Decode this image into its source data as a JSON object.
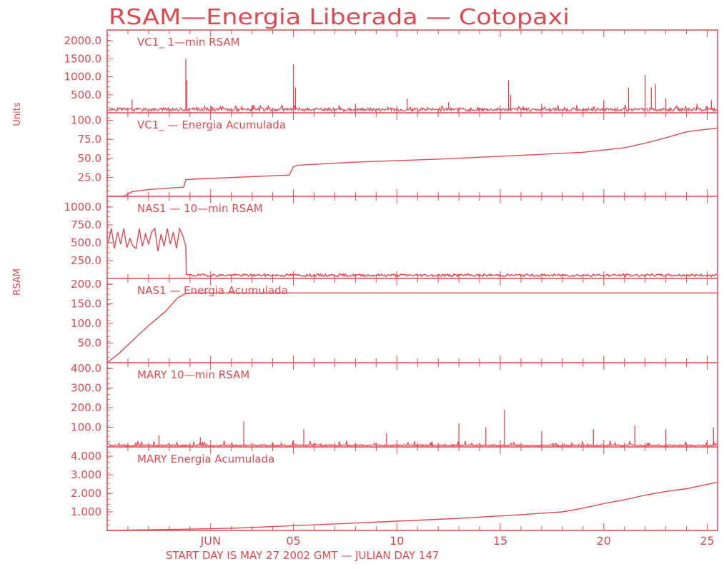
{
  "colors": {
    "line": "#e0484f",
    "background": "#ffffff"
  },
  "title": "RSAM—Energia Liberada — Cotopaxi",
  "side_labels": {
    "upper": "Units",
    "lower": "RSAM"
  },
  "x_axis": {
    "ticks": [
      {
        "label": "JUN",
        "day": 5
      },
      {
        "label": "05",
        "day": 9
      },
      {
        "label": "10",
        "day": 14
      },
      {
        "label": "15",
        "day": 19
      },
      {
        "label": "20",
        "day": 24
      },
      {
        "label": "25",
        "day": 29
      }
    ],
    "range": [
      0,
      29.5
    ],
    "footer": "START DAY IS MAY 27 2002 GMT    — JULIAN DAY 147"
  },
  "chart_data": [
    {
      "type": "line",
      "title": "VC1_  1—min RSAM",
      "ylabel": "Units",
      "ylim": [
        0,
        2300
      ],
      "yticks": [
        "2000.0",
        "1500.0",
        "1000.0",
        "500.0"
      ],
      "ytick_values": [
        2000,
        1500,
        1000,
        500
      ],
      "baseline": 90,
      "spikes": [
        [
          1.2,
          380
        ],
        [
          3.8,
          1500
        ],
        [
          3.85,
          900
        ],
        [
          9.0,
          1350
        ],
        [
          9.1,
          700
        ],
        [
          6.5,
          200
        ],
        [
          12.0,
          250
        ],
        [
          14.5,
          400
        ],
        [
          16.5,
          300
        ],
        [
          19.4,
          900
        ],
        [
          19.5,
          500
        ],
        [
          21.0,
          250
        ],
        [
          24.0,
          350
        ],
        [
          25.2,
          700
        ],
        [
          26.0,
          1050
        ],
        [
          26.3,
          700
        ],
        [
          26.5,
          800
        ],
        [
          27.0,
          400
        ],
        [
          28.5,
          250
        ],
        [
          29.2,
          350
        ]
      ]
    },
    {
      "type": "line",
      "title": "VC1_  — Energia Acumulada",
      "ylabel": "Units",
      "ylim": [
        0,
        110
      ],
      "yticks": [
        "100.0",
        "75.0",
        "50.0",
        "25.0"
      ],
      "ytick_values": [
        100,
        75,
        50,
        25
      ],
      "x": [
        0,
        0.8,
        1.2,
        2.0,
        3.7,
        3.8,
        4.5,
        8.8,
        9.0,
        9.2,
        12,
        16,
        20,
        23,
        25,
        26,
        27,
        28,
        29.5
      ],
      "y": [
        0,
        0,
        6,
        9,
        12,
        22,
        23,
        28,
        39,
        41,
        45,
        49,
        54,
        58,
        64,
        70,
        77,
        85,
        90
      ]
    },
    {
      "type": "line",
      "title": "NAS1  — 10—min RSAM",
      "ylabel": "RSAM",
      "ylim": [
        0,
        1150
      ],
      "yticks": [
        "1000.0",
        "750.0",
        "500.0",
        "250.0"
      ],
      "ytick_values": [
        1000,
        750,
        500,
        250
      ],
      "x": [
        0.05,
        0.2,
        0.35,
        0.5,
        0.65,
        0.8,
        0.95,
        1.1,
        1.25,
        1.4,
        1.55,
        1.7,
        1.85,
        2.0,
        2.15,
        2.3,
        2.45,
        2.6,
        2.75,
        2.9,
        3.05,
        3.2,
        3.35,
        3.5,
        3.65,
        3.8,
        3.82
      ],
      "y": [
        500,
        700,
        420,
        650,
        480,
        700,
        430,
        560,
        450,
        420,
        700,
        450,
        620,
        480,
        650,
        700,
        380,
        620,
        450,
        700,
        480,
        650,
        420,
        700,
        600,
        450,
        60
      ],
      "noise_baseline": 45,
      "spikes": [
        [
          9.0,
          150
        ],
        [
          9.6,
          120
        ],
        [
          13.0,
          130
        ],
        [
          19.3,
          200
        ],
        [
          22.0,
          150
        ],
        [
          25.0,
          180
        ],
        [
          26.5,
          160
        ],
        [
          28.0,
          140
        ]
      ]
    },
    {
      "type": "line",
      "title": "NAS1  — Energia Acumulada",
      "ylabel": "RSAM",
      "ylim": [
        0,
        215
      ],
      "yticks": [
        "200.0",
        "150.0",
        "100.0",
        "50.0"
      ],
      "ytick_values": [
        200,
        150,
        100,
        50
      ],
      "x": [
        0,
        0.6,
        1.2,
        2.0,
        2.8,
        3.4,
        3.8,
        4.2,
        29.5
      ],
      "y": [
        0,
        25,
        55,
        95,
        130,
        165,
        177,
        178,
        178
      ]
    },
    {
      "type": "line",
      "title": "MARY 10—min RSAM",
      "ylabel": "RSAM",
      "ylim": [
        0,
        430
      ],
      "yticks": [
        "400.0",
        "300.0",
        "200.0",
        "100.0"
      ],
      "ytick_values": [
        400,
        300,
        200,
        100
      ],
      "baseline": 8,
      "spikes": [
        [
          2.5,
          60
        ],
        [
          4.5,
          50
        ],
        [
          6.6,
          130
        ],
        [
          9.5,
          90
        ],
        [
          13.5,
          70
        ],
        [
          17.0,
          120
        ],
        [
          18.3,
          100
        ],
        [
          19.2,
          190
        ],
        [
          21.0,
          80
        ],
        [
          23.5,
          90
        ],
        [
          25.5,
          110
        ],
        [
          27.0,
          90
        ],
        [
          29.3,
          100
        ]
      ]
    },
    {
      "type": "line",
      "title": "MARY Energia Acumulada",
      "ylabel": "RSAM",
      "ylim": [
        0,
        4.5
      ],
      "yticks": [
        "4.000",
        "3.000",
        "2.000",
        "1.000"
      ],
      "ytick_values": [
        4,
        3,
        2,
        1
      ],
      "x": [
        0,
        3,
        6,
        10,
        14,
        17,
        20,
        22,
        23,
        24,
        25,
        26,
        27,
        28,
        29.5
      ],
      "y": [
        0,
        0.05,
        0.12,
        0.3,
        0.5,
        0.65,
        0.85,
        1.0,
        1.2,
        1.45,
        1.65,
        1.9,
        2.1,
        2.25,
        2.6
      ]
    }
  ]
}
